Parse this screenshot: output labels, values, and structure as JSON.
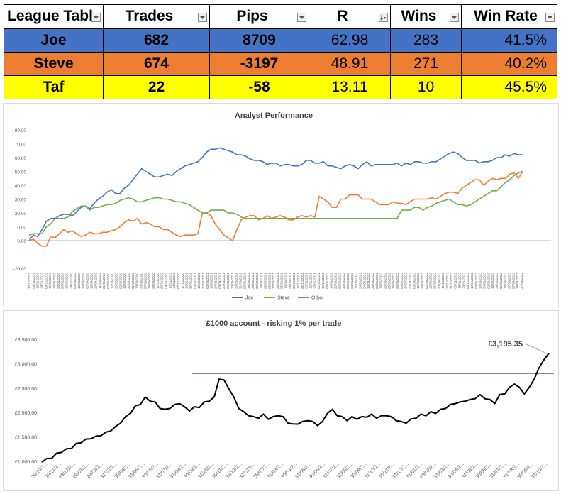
{
  "league_table": {
    "columns": [
      "League Tabl",
      "Trades",
      "Pips",
      "R",
      "Wins",
      "Win Rate"
    ],
    "sort_icons": [
      "chevron-down-icon",
      "chevron-down-icon",
      "chevron-down-icon",
      "chevron-down-icon",
      "sort-desc-icon",
      "chevron-down-icon",
      "chevron-down-icon"
    ],
    "rows": [
      {
        "name": "Joe",
        "trades": "682",
        "pips": "8709",
        "r": "62.98",
        "wins": "283",
        "win_rate": "41.5%",
        "color": "#4472c4"
      },
      {
        "name": "Steve",
        "trades": "674",
        "pips": "-3197",
        "r": "48.91",
        "wins": "271",
        "win_rate": "40.2%",
        "color": "#ed7d31"
      },
      {
        "name": "Taf",
        "trades": "22",
        "pips": "-58",
        "r": "13.11",
        "wins": "10",
        "win_rate": "45.5%",
        "color": "#ffff00"
      }
    ]
  },
  "chart_data": [
    {
      "type": "line",
      "title": "Analyst Performance",
      "ylim": [
        -20,
        80
      ],
      "y_ticks": [
        "-20.00",
        "0.00",
        "10.00",
        "20.00",
        "30.00",
        "40.00",
        "50.00",
        "60.00",
        "70.00",
        "80.00"
      ],
      "x_ticks": [
        "30/10/2019",
        "08/11/2019",
        "19/11/2019",
        "28/11/2019",
        "09/12/2019",
        "19/12/2019",
        "15/01/2020",
        "24/01/2020",
        "04/02/2020",
        "13/02/2020",
        "24/02/2020",
        "04/03/2020",
        "13/03/2020",
        "24/03/2020",
        "02/04/2020",
        "16/04/2020",
        "29/04/2020",
        "11/05/2020",
        "21/05/2020",
        "02/06/2020",
        "12/06/2020",
        "23/06/2020",
        "02/07/2020",
        "13/07/2020",
        "22/07/2020",
        "31/07/2020",
        "13/08/2020",
        "25/08/2020",
        "07/09/2020",
        "18/09/2020",
        "29/09/2020",
        "12/10/2020",
        "23/10/2020",
        "04/11/2020",
        "13/11/2020",
        "24/11/2020",
        "07/12/2020",
        "17/12/2020",
        "14/01/2021",
        "25/01/2021",
        "03/02/2021",
        "12/02/2021",
        "22/02/2021",
        "03/03/2021",
        "15/03/2021",
        "24/03/2021",
        "08/04/2021",
        "20/04/2021",
        "29/04/2021",
        "10/05/2021",
        "20/05/2021",
        "31/05/2021",
        "09/06/2021",
        "18/06/2021",
        "29/06/2021",
        "08/07/2021",
        "19/07/2021",
        "28/07/2021",
        "06/08/2021",
        "17/08/2021",
        "26/08/2021",
        "06/09/2021",
        "15/09/2021",
        "24/09/2021",
        "05/10/2021",
        "14/10/2021",
        "25/10/2021",
        "03/11/2021",
        "12/11/2021",
        "23/11/2021",
        "02/12/2021",
        "13/12/2021",
        "05/01/2022",
        "14/01/2022",
        "25/01/2022",
        "03/02/2022",
        "14/02/2022",
        "23/02/2022",
        "04/03/2022",
        "15/03/2022",
        "24/03/2022",
        "04/04/2022",
        "13/04/2022",
        "25/04/2022",
        "04/05/2022",
        "16/05/2022",
        "25/05/2022",
        "06/06/2022",
        "15/06/2022",
        "24/06/2022",
        "05/07/2022",
        "14/07/2022",
        "25/07/2022",
        "03/08/2022",
        "12/08/2022",
        "23/08/2022",
        "01/09/2022",
        "12/09/2022",
        "21/09/2022",
        "30/09/2022",
        "11/10/2022",
        "20/10/2022",
        "31/10/2022",
        "09/11/2022",
        "18/11/2022",
        "29/11/2022",
        "08/12/2022",
        "19/12/2022",
        "04/01/2023",
        "13/01/2023",
        "24/01/2023",
        "02/02/2023",
        "13/02/2023",
        "24/02/2023",
        "05/03/2023",
        "16/03/2023",
        "27/03/2023",
        "07/04/2023",
        "18/04/2023",
        "27/04/2023"
      ],
      "series": [
        {
          "name": "Joe",
          "color": "#4472c4",
          "values": [
            0,
            4,
            3,
            8,
            14,
            16,
            16,
            18,
            19,
            19,
            18,
            21,
            24,
            25,
            23,
            27,
            30,
            32,
            35,
            37,
            34,
            34,
            38,
            40,
            44,
            48,
            52,
            50,
            48,
            46,
            46,
            47,
            48,
            47,
            50,
            52,
            54,
            55,
            56,
            57,
            60,
            64,
            66,
            66,
            67,
            66,
            65,
            64,
            62,
            62,
            61,
            59,
            58,
            58,
            57,
            55,
            56,
            56,
            54,
            55,
            55,
            54,
            54,
            55,
            58,
            58,
            56,
            56,
            57,
            54,
            54,
            53,
            52,
            54,
            55,
            54,
            52,
            55,
            57,
            54,
            55,
            55,
            55,
            55,
            55,
            56,
            54,
            56,
            55,
            57,
            57,
            56,
            56,
            57,
            57,
            59,
            61,
            63,
            64,
            63,
            60,
            58,
            58,
            58,
            56,
            57,
            57,
            58,
            60,
            60,
            62,
            61,
            63,
            62,
            62
          ]
        },
        {
          "name": "Steve",
          "color": "#ed7d31",
          "values": [
            0,
            1,
            -2,
            -4,
            -4,
            3,
            2,
            5,
            8,
            6,
            7,
            5,
            3,
            4,
            6,
            5,
            5,
            6,
            6,
            7,
            8,
            10,
            13,
            15,
            14,
            16,
            12,
            13,
            12,
            10,
            10,
            8,
            8,
            6,
            4,
            3,
            4,
            4,
            4,
            5,
            20,
            20,
            18,
            12,
            8,
            4,
            2,
            0,
            8,
            15,
            17,
            18,
            18,
            15,
            16,
            18,
            16,
            17,
            18,
            17,
            15,
            15,
            17,
            18,
            17,
            18,
            17,
            32,
            30,
            28,
            24,
            24,
            30,
            30,
            33,
            33,
            33,
            30,
            30,
            30,
            28,
            26,
            26,
            26,
            28,
            27,
            27,
            26,
            28,
            30,
            30,
            30,
            30,
            31,
            30,
            32,
            34,
            35,
            35,
            34,
            38,
            40,
            42,
            44,
            44,
            40,
            43,
            45,
            44,
            45,
            45,
            48,
            49,
            45,
            50
          ]
        },
        {
          "name": "Other",
          "color": "#70ad47",
          "values": [
            4,
            5,
            5,
            5,
            10,
            12,
            16,
            16,
            16,
            17,
            21,
            23,
            25,
            25,
            22,
            24,
            24,
            25,
            26,
            26,
            27,
            29,
            30,
            31,
            30,
            28,
            28,
            29,
            30,
            31,
            31,
            30,
            30,
            29,
            28,
            28,
            27,
            26,
            24,
            22,
            20,
            20,
            22,
            22,
            22,
            22,
            20,
            20,
            19,
            17,
            16,
            16,
            16,
            16,
            16,
            16,
            16,
            16,
            16,
            16,
            16,
            16,
            16,
            16,
            16,
            16,
            16,
            16,
            16,
            16,
            16,
            16,
            16,
            16,
            16,
            16,
            16,
            16,
            16,
            16,
            16,
            16,
            16,
            16,
            16,
            16,
            22,
            22,
            22,
            24,
            24,
            22,
            24,
            25,
            27,
            28,
            29,
            30,
            28,
            26,
            26,
            25,
            26,
            28,
            30,
            32,
            34,
            36,
            36,
            39,
            42,
            44,
            47,
            49,
            50
          ]
        }
      ]
    },
    {
      "type": "line",
      "title": "£1000 account - risking 1% per trade",
      "ylim": [
        1000,
        3500
      ],
      "y_ticks": [
        "£1,000.00",
        "£1,500.00",
        "£2,000.00",
        "£2,500.00",
        "£3,000.00",
        "£3,500.00"
      ],
      "x_ticks": [
        "29/10/2...",
        "29/11/2...",
        "29/12/2...",
        "29/01/2...",
        "29/02/2...",
        "31/03/2...",
        "30/04/2...",
        "31/05/2...",
        "30/06/2...",
        "31/07/2...",
        "31/08/2...",
        "30/09/2...",
        "31/10/2...",
        "30/11/2...",
        "31/12/2...",
        "31/01/2...",
        "28/02/2...",
        "31/03/2...",
        "30/04/2...",
        "31/05/2...",
        "30/06/2...",
        "31/07/2...",
        "31/08/2...",
        "30/09/2...",
        "31/10/2...",
        "30/11/2...",
        "31/12/2...",
        "31/01/2...",
        "28/02/2...",
        "31/03/2...",
        "30/04/2...",
        "31/05/2...",
        "30/06/2...",
        "31/07/2...",
        "31/08/2...",
        "30/09/2...",
        "31/10/2..."
      ],
      "reference_line": 2800,
      "annotation": "£3,195.35",
      "series": [
        {
          "color": "#000000",
          "values": [
            1000,
            1040,
            1080,
            1150,
            1200,
            1240,
            1280,
            1350,
            1400,
            1440,
            1480,
            1500,
            1540,
            1580,
            1640,
            1700,
            1800,
            1900,
            2000,
            2120,
            2180,
            2300,
            2250,
            2200,
            2100,
            2050,
            2100,
            2150,
            2200,
            2100,
            2050,
            2100,
            2120,
            2200,
            2250,
            2300,
            2700,
            2650,
            2500,
            2300,
            2100,
            2000,
            1950,
            1900,
            1900,
            1950,
            1880,
            1900,
            1950,
            1900,
            1800,
            1750,
            1780,
            1800,
            1850,
            1800,
            1750,
            1800,
            2000,
            2050,
            1950,
            1900,
            1850,
            1900,
            1880,
            1900,
            1920,
            1950,
            1900,
            1920,
            1950,
            1900,
            1850,
            1800,
            1800,
            1850,
            1900,
            1950,
            1950,
            2000,
            2000,
            2050,
            2100,
            2150,
            2200,
            2200,
            2250,
            2250,
            2300,
            2350,
            2300,
            2250,
            2200,
            2350,
            2400,
            2500,
            2600,
            2500,
            2400,
            2500,
            2700,
            2900,
            3100,
            3195
          ]
        }
      ]
    }
  ],
  "chart1": {
    "title": "Analyst Performance"
  },
  "chart2": {
    "title": "£1000 account - risking 1% per trade"
  }
}
